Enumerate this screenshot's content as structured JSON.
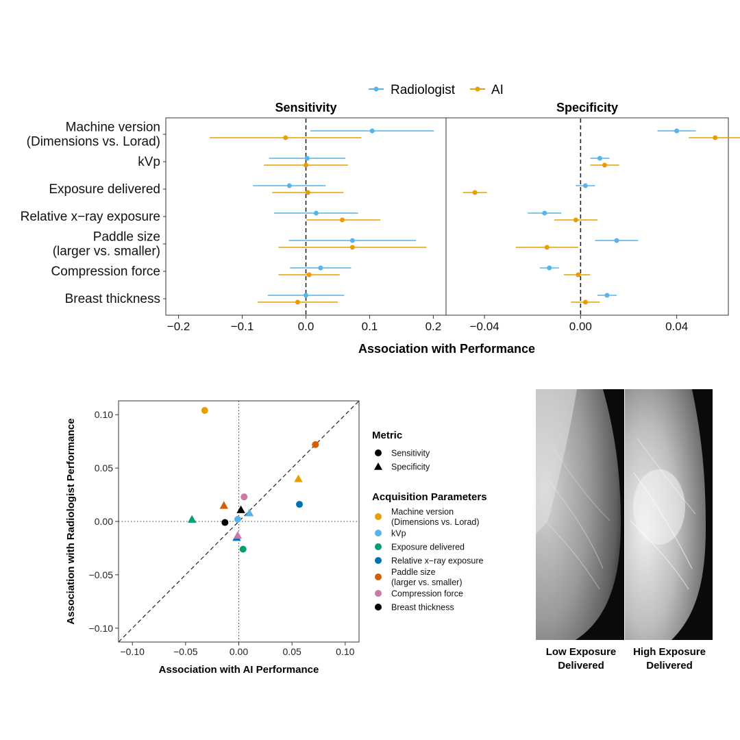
{
  "colors": {
    "radiologist": "#56B4E9",
    "ai": "#E69F00",
    "machine_version": "#E69F00",
    "kvp": "#56B4E9",
    "exposure_delivered": "#009E73",
    "relative_xray": "#0072B2",
    "paddle_size": "#D55E00",
    "compression_force": "#CC79A7",
    "breast_thickness": "#000000"
  },
  "legend_top": {
    "radiologist": "Radiologist",
    "ai": "AI"
  },
  "forest": {
    "xlabel": "Association with Performance",
    "parameters": [
      {
        "key": "machine_version",
        "label_lines": [
          "Machine version",
          "(Dimensions vs. Lorad)"
        ]
      },
      {
        "key": "kvp",
        "label_lines": [
          "kVp"
        ]
      },
      {
        "key": "exposure_delivered",
        "label_lines": [
          "Exposure delivered"
        ]
      },
      {
        "key": "relative_xray",
        "label_lines": [
          "Relative x−ray exposure"
        ]
      },
      {
        "key": "paddle_size",
        "label_lines": [
          "Paddle size",
          "(larger vs. smaller)"
        ]
      },
      {
        "key": "compression_force",
        "label_lines": [
          "Compression force"
        ]
      },
      {
        "key": "breast_thickness",
        "label_lines": [
          "Breast thickness"
        ]
      }
    ],
    "panels": [
      {
        "title": "Sensitivity",
        "xlim": [
          -0.22,
          0.22
        ],
        "ticks": [
          -0.2,
          -0.1,
          0.0,
          0.1,
          0.2
        ],
        "tick_labels": [
          "−0.2",
          "−0.1",
          "0.0",
          "0.1",
          "0.2"
        ],
        "radiologist": [
          {
            "est": 0.104,
            "lo": 0.007,
            "hi": 0.201
          },
          {
            "est": 0.002,
            "lo": -0.058,
            "hi": 0.062
          },
          {
            "est": -0.026,
            "lo": -0.083,
            "hi": 0.031
          },
          {
            "est": 0.016,
            "lo": -0.05,
            "hi": 0.082
          },
          {
            "est": 0.073,
            "lo": -0.027,
            "hi": 0.173
          },
          {
            "est": 0.023,
            "lo": -0.025,
            "hi": 0.071
          },
          {
            "est": 0.0,
            "lo": -0.06,
            "hi": 0.06
          }
        ],
        "ai": [
          {
            "est": -0.032,
            "lo": -0.151,
            "hi": 0.087
          },
          {
            "est": 0.0,
            "lo": -0.066,
            "hi": 0.066
          },
          {
            "est": 0.003,
            "lo": -0.053,
            "hi": 0.059
          },
          {
            "est": 0.057,
            "lo": 0.001,
            "hi": 0.117
          },
          {
            "est": 0.073,
            "lo": -0.043,
            "hi": 0.189
          },
          {
            "est": 0.005,
            "lo": -0.043,
            "hi": 0.053
          },
          {
            "est": -0.013,
            "lo": -0.076,
            "hi": 0.05
          }
        ]
      },
      {
        "title": "Specificity",
        "xlim": [
          -0.056,
          0.0615
        ],
        "ticks": [
          -0.04,
          0.0,
          0.04
        ],
        "tick_labels": [
          "−0.04",
          "0.00",
          "0.04"
        ],
        "radiologist": [
          {
            "est": 0.04,
            "lo": 0.032,
            "hi": 0.048
          },
          {
            "est": 0.008,
            "lo": 0.004,
            "hi": 0.012
          },
          {
            "est": 0.002,
            "lo": -0.002,
            "hi": 0.006
          },
          {
            "est": -0.015,
            "lo": -0.022,
            "hi": -0.008
          },
          {
            "est": 0.015,
            "lo": 0.006,
            "hi": 0.024
          },
          {
            "est": -0.013,
            "lo": -0.017,
            "hi": -0.009
          },
          {
            "est": 0.011,
            "lo": 0.007,
            "hi": 0.015
          }
        ],
        "ai": [
          {
            "est": 0.056,
            "lo": 0.045,
            "hi": 0.067
          },
          {
            "est": 0.01,
            "lo": 0.004,
            "hi": 0.016
          },
          {
            "est": -0.044,
            "lo": -0.049,
            "hi": -0.039
          },
          {
            "est": -0.002,
            "lo": -0.011,
            "hi": 0.007
          },
          {
            "est": -0.014,
            "lo": -0.027,
            "hi": -0.001
          },
          {
            "est": -0.001,
            "lo": -0.007,
            "hi": 0.004
          },
          {
            "est": 0.002,
            "lo": -0.004,
            "hi": 0.008
          }
        ]
      }
    ]
  },
  "chart_data": [
    {
      "type": "scatter",
      "title": "",
      "xlabel": "Association with Performance",
      "ylabel": "",
      "facets": [
        "Sensitivity",
        "Specificity"
      ],
      "series": [
        {
          "name": "Radiologist",
          "panel": "Sensitivity",
          "categories": [
            "Machine version",
            "kVp",
            "Exposure delivered",
            "Relative x-ray exposure",
            "Paddle size",
            "Compression force",
            "Breast thickness"
          ],
          "values": [
            0.104,
            0.002,
            -0.026,
            0.016,
            0.073,
            0.023,
            0.0
          ]
        },
        {
          "name": "AI",
          "panel": "Sensitivity",
          "categories": [
            "Machine version",
            "kVp",
            "Exposure delivered",
            "Relative x-ray exposure",
            "Paddle size",
            "Compression force",
            "Breast thickness"
          ],
          "values": [
            -0.032,
            0.0,
            0.003,
            0.057,
            0.073,
            0.005,
            -0.013
          ]
        },
        {
          "name": "Radiologist",
          "panel": "Specificity",
          "categories": [
            "Machine version",
            "kVp",
            "Exposure delivered",
            "Relative x-ray exposure",
            "Paddle size",
            "Compression force",
            "Breast thickness"
          ],
          "values": [
            0.04,
            0.008,
            0.002,
            -0.015,
            0.015,
            -0.013,
            0.011
          ]
        },
        {
          "name": "AI",
          "panel": "Specificity",
          "categories": [
            "Machine version",
            "kVp",
            "Exposure delivered",
            "Relative x-ray exposure",
            "Paddle size",
            "Compression force",
            "Breast thickness"
          ],
          "values": [
            0.056,
            0.01,
            -0.044,
            -0.002,
            -0.014,
            -0.001,
            0.002
          ]
        }
      ]
    },
    {
      "type": "scatter",
      "title": "",
      "xlabel": "Association with AI Performance",
      "ylabel": "Association with Radiologist Performance",
      "xlim": [
        -0.113,
        0.113
      ],
      "ylim": [
        -0.113,
        0.113
      ],
      "ticks": [
        -0.1,
        -0.05,
        0.0,
        0.05,
        0.1
      ],
      "tick_labels": [
        "−0.10",
        "−0.05",
        "0.00",
        "0.05",
        "0.10"
      ],
      "legend_metric_title": "Metric",
      "legend_metric": [
        {
          "label": "Sensitivity",
          "shape": "circle"
        },
        {
          "label": "Specificity",
          "shape": "triangle"
        }
      ],
      "legend_params_title": "Acquisition Parameters",
      "legend_params": [
        {
          "key": "machine_version",
          "label_lines": [
            "Machine version",
            "(Dimensions vs. Lorad)"
          ]
        },
        {
          "key": "kvp",
          "label_lines": [
            "kVp"
          ]
        },
        {
          "key": "exposure_delivered",
          "label_lines": [
            "Exposure delivered"
          ]
        },
        {
          "key": "relative_xray",
          "label_lines": [
            "Relative x−ray exposure"
          ]
        },
        {
          "key": "paddle_size",
          "label_lines": [
            "Paddle size",
            "(larger vs. smaller)"
          ]
        },
        {
          "key": "compression_force",
          "label_lines": [
            "Compression force"
          ]
        },
        {
          "key": "breast_thickness",
          "label_lines": [
            "Breast thickness"
          ]
        }
      ],
      "points": [
        {
          "param": "machine_version",
          "metric": "Sensitivity",
          "x": -0.032,
          "y": 0.104
        },
        {
          "param": "kvp",
          "metric": "Sensitivity",
          "x": -0.001,
          "y": 0.002
        },
        {
          "param": "exposure_delivered",
          "metric": "Sensitivity",
          "x": 0.004,
          "y": -0.026
        },
        {
          "param": "relative_xray",
          "metric": "Sensitivity",
          "x": 0.057,
          "y": 0.016
        },
        {
          "param": "paddle_size",
          "metric": "Sensitivity",
          "x": 0.072,
          "y": 0.072
        },
        {
          "param": "compression_force",
          "metric": "Sensitivity",
          "x": 0.005,
          "y": 0.023
        },
        {
          "param": "breast_thickness",
          "metric": "Sensitivity",
          "x": -0.013,
          "y": -0.001
        },
        {
          "param": "machine_version",
          "metric": "Specificity",
          "x": 0.056,
          "y": 0.04
        },
        {
          "param": "kvp",
          "metric": "Specificity",
          "x": 0.01,
          "y": 0.008
        },
        {
          "param": "exposure_delivered",
          "metric": "Specificity",
          "x": -0.044,
          "y": 0.002
        },
        {
          "param": "relative_xray",
          "metric": "Specificity",
          "x": -0.002,
          "y": -0.015
        },
        {
          "param": "paddle_size",
          "metric": "Specificity",
          "x": -0.014,
          "y": 0.015
        },
        {
          "param": "compression_force",
          "metric": "Specificity",
          "x": -0.001,
          "y": -0.013
        },
        {
          "param": "breast_thickness",
          "metric": "Specificity",
          "x": 0.002,
          "y": 0.011
        }
      ]
    }
  ],
  "images": {
    "left_caption_lines": [
      "Low Exposure",
      "Delivered"
    ],
    "right_caption_lines": [
      "High Exposure",
      "Delivered"
    ]
  }
}
